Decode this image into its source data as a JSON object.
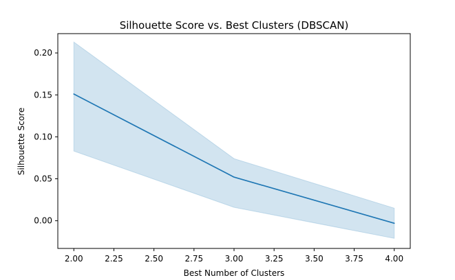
{
  "chart_data": {
    "type": "line",
    "title": "Silhouette Score vs. Best Clusters (DBSCAN)",
    "xlabel": "Best Number of Clusters",
    "ylabel": "Silhouette Score",
    "xlim": [
      1.9,
      4.1
    ],
    "ylim": [
      -0.033,
      0.223
    ],
    "x_ticks": [
      2.0,
      2.25,
      2.5,
      2.75,
      3.0,
      3.25,
      3.5,
      3.75,
      4.0
    ],
    "x_tick_labels": [
      "2.00",
      "2.25",
      "2.50",
      "2.75",
      "3.00",
      "3.25",
      "3.50",
      "3.75",
      "4.00"
    ],
    "y_ticks": [
      0.0,
      0.05,
      0.1,
      0.15,
      0.2
    ],
    "y_tick_labels": [
      "0.00",
      "0.05",
      "0.10",
      "0.15",
      "0.20"
    ],
    "grid": false,
    "series": [
      {
        "x": [
          2.0,
          3.0,
          4.0
        ],
        "y": [
          0.151,
          0.052,
          -0.003
        ],
        "ci_lower": [
          0.083,
          0.016,
          -0.021
        ],
        "ci_upper": [
          0.213,
          0.074,
          0.015
        ],
        "color": "#1f77b4",
        "band_color": "#1f77b4"
      }
    ]
  }
}
